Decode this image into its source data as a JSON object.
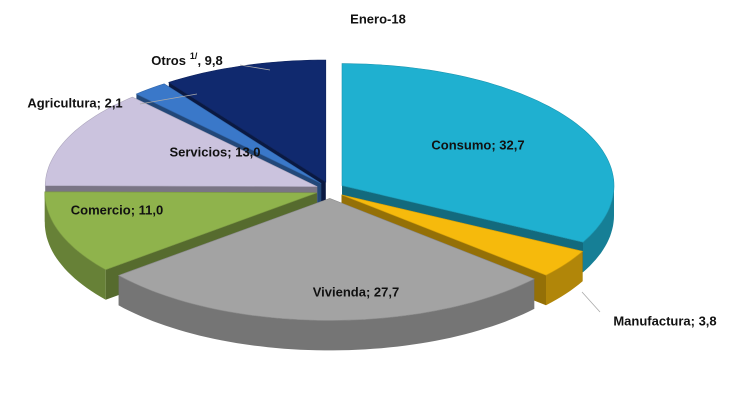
{
  "chart_data": {
    "type": "pie3d",
    "title": "Enero-18",
    "labels": [
      "Consumo; 32,7",
      "Manufactura; 3,8",
      "Vivienda; 27,7",
      "Comercio; 11,0",
      "Servicios; 13,0",
      "Agricultura; 2,1",
      {
        "text": "Otros",
        "sup": "1/",
        "rest": ", 9,8"
      }
    ],
    "values": [
      32.7,
      3.8,
      27.7,
      11.0,
      13.0,
      2.1,
      9.8
    ],
    "colors": [
      "#1fb0d0",
      "#f6ba0c",
      "#a3a3a3",
      "#8fb34c",
      "#cbc3de",
      "#3a78c9",
      "#10296e"
    ]
  }
}
